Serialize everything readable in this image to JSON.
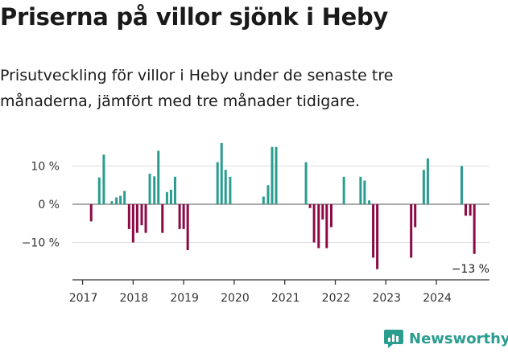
{
  "title": "Priserna på villor sjönk i Heby",
  "subtitle": "Prisutveckling för villor i Heby under de senaste tre månaderna, jämfört med tre månader tidigare.",
  "brand": {
    "name": "Newsworthy"
  },
  "colors": {
    "positive": "#2a9d8f",
    "negative": "#8b0a45",
    "grid": "#dddddd",
    "axis": "#333333"
  },
  "chart_data": {
    "type": "bar",
    "title": "Priserna på villor sjönk i Heby",
    "subtitle": "Prisutveckling för villor i Heby under de senaste tre månaderna, jämfört med tre månader tidigare.",
    "xlabel": "",
    "ylabel": "",
    "unit": "%",
    "ylim": [
      -18,
      18
    ],
    "xlim": [
      2016.8,
      2025.05
    ],
    "yticks": [
      {
        "value": 10,
        "label": "10 %"
      },
      {
        "value": 0,
        "label": "0 %"
      },
      {
        "value": -10,
        "label": "−10 %"
      }
    ],
    "xticks": [
      {
        "value": 2017,
        "label": "2017"
      },
      {
        "value": 2018,
        "label": "2018"
      },
      {
        "value": 2019,
        "label": "2019"
      },
      {
        "value": 2020,
        "label": "2020"
      },
      {
        "value": 2021,
        "label": "2021"
      },
      {
        "value": 2022,
        "label": "2022"
      },
      {
        "value": 2023,
        "label": "2023"
      },
      {
        "value": 2024,
        "label": "2024"
      }
    ],
    "annotation": {
      "label": "−13 %",
      "x": 2024.75
    },
    "series": [
      {
        "name": "Prisutveckling",
        "points": [
          {
            "x": 2017.17,
            "y": -4.5
          },
          {
            "x": 2017.33,
            "y": 7
          },
          {
            "x": 2017.42,
            "y": 13
          },
          {
            "x": 2017.58,
            "y": 0.8
          },
          {
            "x": 2017.67,
            "y": 1.8
          },
          {
            "x": 2017.75,
            "y": 2.2
          },
          {
            "x": 2017.83,
            "y": 3.5
          },
          {
            "x": 2017.92,
            "y": -6.5
          },
          {
            "x": 2018.0,
            "y": -10
          },
          {
            "x": 2018.08,
            "y": -7.5
          },
          {
            "x": 2018.17,
            "y": -5.5
          },
          {
            "x": 2018.25,
            "y": -7.5
          },
          {
            "x": 2018.33,
            "y": 8
          },
          {
            "x": 2018.42,
            "y": 7.3
          },
          {
            "x": 2018.5,
            "y": 14
          },
          {
            "x": 2018.58,
            "y": -7.5
          },
          {
            "x": 2018.67,
            "y": 3.2
          },
          {
            "x": 2018.75,
            "y": 3.8
          },
          {
            "x": 2018.83,
            "y": 7.2
          },
          {
            "x": 2018.92,
            "y": -6.5
          },
          {
            "x": 2019.0,
            "y": -6.5
          },
          {
            "x": 2019.08,
            "y": -12
          },
          {
            "x": 2019.67,
            "y": 11
          },
          {
            "x": 2019.75,
            "y": 16
          },
          {
            "x": 2019.83,
            "y": 9
          },
          {
            "x": 2019.92,
            "y": 7.2
          },
          {
            "x": 2020.58,
            "y": 2
          },
          {
            "x": 2020.67,
            "y": 5
          },
          {
            "x": 2020.75,
            "y": 15
          },
          {
            "x": 2020.83,
            "y": 15
          },
          {
            "x": 2021.42,
            "y": 11
          },
          {
            "x": 2021.5,
            "y": -1
          },
          {
            "x": 2021.58,
            "y": -10
          },
          {
            "x": 2021.67,
            "y": -11.5
          },
          {
            "x": 2021.75,
            "y": -4
          },
          {
            "x": 2021.83,
            "y": -11.5
          },
          {
            "x": 2021.92,
            "y": -6
          },
          {
            "x": 2022.17,
            "y": 7.2
          },
          {
            "x": 2022.5,
            "y": 7.2
          },
          {
            "x": 2022.58,
            "y": 6.2
          },
          {
            "x": 2022.67,
            "y": 1
          },
          {
            "x": 2022.75,
            "y": -14
          },
          {
            "x": 2022.83,
            "y": -17
          },
          {
            "x": 2023.5,
            "y": -14
          },
          {
            "x": 2023.58,
            "y": -6
          },
          {
            "x": 2023.75,
            "y": 9
          },
          {
            "x": 2023.83,
            "y": 12
          },
          {
            "x": 2024.5,
            "y": 10
          },
          {
            "x": 2024.58,
            "y": -3
          },
          {
            "x": 2024.67,
            "y": -3
          },
          {
            "x": 2024.75,
            "y": -13
          }
        ]
      }
    ]
  }
}
